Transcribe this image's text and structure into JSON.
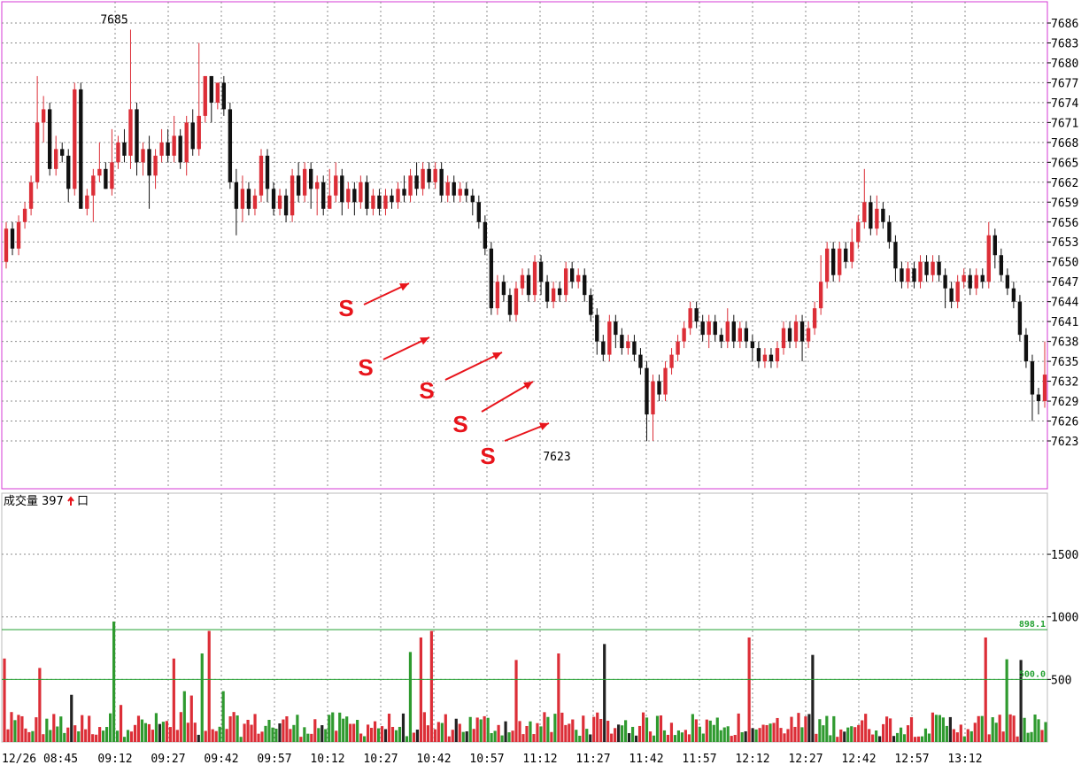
{
  "chart_data": [
    {
      "type": "candlestick",
      "panel": "price",
      "y_ticks": [
        7686,
        7683,
        7680,
        7677,
        7674,
        7671,
        7668,
        7665,
        7662,
        7659,
        7656,
        7653,
        7650,
        7647,
        7644,
        7641,
        7638,
        7635,
        7632,
        7629,
        7626,
        7623
      ],
      "ylim": [
        7620,
        7688
      ],
      "grid": true,
      "annotations": [
        {
          "text": "7685",
          "kind": "high",
          "price": 7685,
          "time": "09:12"
        },
        {
          "text": "7623",
          "kind": "low",
          "price": 7623,
          "time": "11:12"
        }
      ],
      "signals": [
        {
          "text": "S",
          "time": "10:29",
          "price": 7649
        },
        {
          "text": "S",
          "time": "10:35",
          "price": 7641
        },
        {
          "text": "S",
          "time": "10:58",
          "price": 7639
        },
        {
          "text": "S",
          "time": "11:08",
          "price": 7635
        },
        {
          "text": "S",
          "time": "11:11",
          "price": 7629
        }
      ],
      "candles": [
        [
          7650,
          7655,
          7649,
          7656
        ],
        [
          7655,
          7652,
          7651,
          7656
        ],
        [
          7652,
          7656,
          7651,
          7657
        ],
        [
          7656,
          7658,
          7655,
          7659
        ],
        [
          7658,
          7662,
          7657,
          7663
        ],
        [
          7662,
          7671,
          7661,
          7678
        ],
        [
          7671,
          7673,
          7668,
          7675
        ],
        [
          7673,
          7664,
          7663,
          7674
        ],
        [
          7664,
          7667,
          7663,
          7669
        ],
        [
          7667,
          7666,
          7665,
          7668
        ],
        [
          7666,
          7661,
          7659,
          7667
        ],
        [
          7661,
          7676,
          7660,
          7677
        ],
        [
          7676,
          7658,
          7658,
          7677
        ],
        [
          7658,
          7660,
          7657,
          7661
        ],
        [
          7660,
          7663,
          7656,
          7664
        ],
        [
          7663,
          7664,
          7662,
          7668
        ],
        [
          7664,
          7661,
          7661,
          7665
        ],
        [
          7661,
          7665,
          7660,
          7670
        ],
        [
          7665,
          7668,
          7664,
          7669
        ],
        [
          7668,
          7666,
          7665,
          7670
        ],
        [
          7666,
          7673,
          7664,
          7685
        ],
        [
          7673,
          7665,
          7663,
          7674
        ],
        [
          7665,
          7667,
          7663,
          7668
        ],
        [
          7667,
          7663,
          7658,
          7669
        ],
        [
          7663,
          7666,
          7661,
          7667
        ],
        [
          7666,
          7668,
          7665,
          7670
        ],
        [
          7668,
          7666,
          7665,
          7670
        ],
        [
          7666,
          7669,
          7665,
          7672
        ],
        [
          7669,
          7665,
          7664,
          7670
        ],
        [
          7665,
          7671,
          7663,
          7672
        ],
        [
          7671,
          7667,
          7666,
          7673
        ],
        [
          7667,
          7672,
          7666,
          7683
        ],
        [
          7672,
          7678,
          7671,
          7678
        ],
        [
          7678,
          7674,
          7671,
          7678
        ],
        [
          7674,
          7677,
          7673,
          7677
        ],
        [
          7677,
          7673,
          7672,
          7678
        ],
        [
          7673,
          7662,
          7661,
          7674
        ],
        [
          7662,
          7658,
          7654,
          7664
        ],
        [
          7658,
          7661,
          7656,
          7663
        ],
        [
          7661,
          7658,
          7657,
          7662
        ],
        [
          7658,
          7660,
          7657,
          7661
        ],
        [
          7660,
          7666,
          7659,
          7667
        ],
        [
          7666,
          7661,
          7659,
          7667
        ],
        [
          7661,
          7658,
          7657,
          7662
        ],
        [
          7658,
          7660,
          7657,
          7661
        ],
        [
          7660,
          7657,
          7656,
          7661
        ],
        [
          7657,
          7663,
          7656,
          7664
        ],
        [
          7663,
          7660,
          7659,
          7665
        ],
        [
          7660,
          7664,
          7659,
          7665
        ],
        [
          7664,
          7661,
          7658,
          7665
        ],
        [
          7661,
          7662,
          7657,
          7663
        ],
        [
          7662,
          7658,
          7657,
          7663
        ],
        [
          7658,
          7660,
          7658,
          7664
        ],
        [
          7660,
          7663,
          7659,
          7665
        ],
        [
          7663,
          7659,
          7657,
          7664
        ],
        [
          7659,
          7661,
          7658,
          7662
        ],
        [
          7661,
          7659,
          7657,
          7662
        ],
        [
          7659,
          7662,
          7658,
          7663
        ],
        [
          7662,
          7658,
          7657,
          7663
        ],
        [
          7658,
          7660,
          7657,
          7661
        ],
        [
          7660,
          7658,
          7657,
          7661
        ],
        [
          7658,
          7660,
          7657,
          7661
        ],
        [
          7660,
          7659,
          7658,
          7661
        ],
        [
          7659,
          7661,
          7658,
          7662
        ],
        [
          7661,
          7660,
          7659,
          7663
        ],
        [
          7660,
          7663,
          7659,
          7664
        ],
        [
          7663,
          7661,
          7660,
          7665
        ],
        [
          7661,
          7664,
          7660,
          7665
        ],
        [
          7664,
          7662,
          7661,
          7665
        ],
        [
          7662,
          7664,
          7661,
          7665
        ],
        [
          7664,
          7660,
          7659,
          7665
        ],
        [
          7660,
          7662,
          7659,
          7663
        ],
        [
          7662,
          7660,
          7659,
          7663
        ],
        [
          7660,
          7661,
          7659,
          7662
        ],
        [
          7661,
          7660,
          7659,
          7662
        ],
        [
          7660,
          7659,
          7657,
          7661
        ],
        [
          7659,
          7656,
          7655,
          7660
        ],
        [
          7656,
          7652,
          7651,
          7657
        ],
        [
          7652,
          7643,
          7642,
          7653
        ],
        [
          7643,
          7647,
          7642,
          7648
        ],
        [
          7647,
          7645,
          7644,
          7648
        ],
        [
          7645,
          7642,
          7641,
          7646
        ],
        [
          7642,
          7646,
          7641,
          7647
        ],
        [
          7646,
          7648,
          7645,
          7649
        ],
        [
          7648,
          7645,
          7644,
          7649
        ],
        [
          7645,
          7650,
          7644,
          7651
        ],
        [
          7650,
          7647,
          7645,
          7651
        ],
        [
          7647,
          7644,
          7643,
          7648
        ],
        [
          7644,
          7646,
          7643,
          7647
        ],
        [
          7646,
          7645,
          7644,
          7647
        ],
        [
          7645,
          7649,
          7644,
          7650
        ],
        [
          7649,
          7647,
          7646,
          7650
        ],
        [
          7647,
          7648,
          7646,
          7649
        ],
        [
          7648,
          7645,
          7644,
          7649
        ],
        [
          7645,
          7642,
          7641,
          7646
        ],
        [
          7642,
          7638,
          7636,
          7643
        ],
        [
          7638,
          7636,
          7635,
          7639
        ],
        [
          7636,
          7641,
          7635,
          7642
        ],
        [
          7641,
          7639,
          7637,
          7642
        ],
        [
          7639,
          7637,
          7636,
          7640
        ],
        [
          7637,
          7638,
          7636,
          7639
        ],
        [
          7638,
          7636,
          7635,
          7639
        ],
        [
          7636,
          7634,
          7633,
          7637
        ],
        [
          7634,
          7627,
          7623,
          7635
        ],
        [
          7627,
          7632,
          7623,
          7633
        ],
        [
          7632,
          7630,
          7629,
          7633
        ],
        [
          7630,
          7634,
          7629,
          7635
        ],
        [
          7634,
          7636,
          7633,
          7637
        ],
        [
          7636,
          7638,
          7635,
          7639
        ],
        [
          7638,
          7640,
          7637,
          7641
        ],
        [
          7640,
          7643,
          7639,
          7644
        ],
        [
          7643,
          7641,
          7640,
          7644
        ],
        [
          7641,
          7639,
          7638,
          7642
        ],
        [
          7639,
          7641,
          7637,
          7642
        ],
        [
          7641,
          7639,
          7638,
          7642
        ],
        [
          7639,
          7638,
          7637,
          7640
        ],
        [
          7638,
          7641,
          7637,
          7643
        ],
        [
          7641,
          7638,
          7637,
          7642
        ],
        [
          7638,
          7640,
          7637,
          7641
        ],
        [
          7640,
          7638,
          7637,
          7641
        ],
        [
          7638,
          7637,
          7635,
          7639
        ],
        [
          7637,
          7635,
          7634,
          7638
        ],
        [
          7635,
          7636,
          7634,
          7637
        ],
        [
          7636,
          7635,
          7634,
          7637
        ],
        [
          7635,
          7637,
          7634,
          7638
        ],
        [
          7637,
          7640,
          7636,
          7641
        ],
        [
          7640,
          7638,
          7637,
          7641
        ],
        [
          7638,
          7641,
          7637,
          7642
        ],
        [
          7641,
          7638,
          7635,
          7642
        ],
        [
          7638,
          7640,
          7637,
          7641
        ],
        [
          7640,
          7643,
          7639,
          7644
        ],
        [
          7643,
          7647,
          7642,
          7651
        ],
        [
          7647,
          7652,
          7646,
          7653
        ],
        [
          7652,
          7648,
          7647,
          7653
        ],
        [
          7648,
          7652,
          7647,
          7653
        ],
        [
          7652,
          7650,
          7649,
          7653
        ],
        [
          7650,
          7653,
          7649,
          7655
        ],
        [
          7653,
          7656,
          7652,
          7657
        ],
        [
          7656,
          7659,
          7655,
          7664
        ],
        [
          7659,
          7655,
          7654,
          7660
        ],
        [
          7655,
          7658,
          7654,
          7660
        ],
        [
          7658,
          7656,
          7655,
          7659
        ],
        [
          7656,
          7653,
          7652,
          7657
        ],
        [
          7653,
          7649,
          7647,
          7654
        ],
        [
          7649,
          7647,
          7646,
          7650
        ],
        [
          7647,
          7649,
          7646,
          7650
        ],
        [
          7649,
          7647,
          7646,
          7650
        ],
        [
          7647,
          7650,
          7646,
          7651
        ],
        [
          7650,
          7648,
          7647,
          7651
        ],
        [
          7648,
          7650,
          7647,
          7651
        ],
        [
          7650,
          7648,
          7647,
          7651
        ],
        [
          7648,
          7646,
          7643,
          7649
        ],
        [
          7646,
          7644,
          7643,
          7647
        ],
        [
          7644,
          7647,
          7643,
          7648
        ],
        [
          7647,
          7648,
          7646,
          7649
        ],
        [
          7648,
          7646,
          7645,
          7649
        ],
        [
          7646,
          7648,
          7645,
          7649
        ],
        [
          7648,
          7647,
          7646,
          7649
        ],
        [
          7647,
          7654,
          7646,
          7656
        ],
        [
          7654,
          7651,
          7649,
          7655
        ],
        [
          7651,
          7648,
          7647,
          7652
        ],
        [
          7648,
          7646,
          7645,
          7649
        ],
        [
          7646,
          7644,
          7643,
          7647
        ],
        [
          7644,
          7639,
          7638,
          7645
        ],
        [
          7639,
          7635,
          7634,
          7640
        ],
        [
          7635,
          7630,
          7626,
          7636
        ],
        [
          7630,
          7629,
          7627,
          7631
        ],
        [
          7629,
          7633,
          7628,
          7638
        ]
      ]
    },
    {
      "type": "bar",
      "panel": "volume",
      "title": "成交量",
      "value_label": "397",
      "unit": "口",
      "y_ticks": [
        1500,
        1000,
        500
      ],
      "ylim": [
        0,
        1850
      ],
      "ref_lines": [
        {
          "value": 898.1,
          "label": "898.1"
        },
        {
          "value": 500.0,
          "label": "500.0"
        }
      ],
      "x_ticks": [
        "12/26 08:45",
        "09:12",
        "09:27",
        "09:42",
        "09:57",
        "10:12",
        "10:27",
        "10:42",
        "10:57",
        "11:12",
        "11:27",
        "11:42",
        "11:57",
        "12:12",
        "12:27",
        "12:42",
        "12:57",
        "13:12"
      ],
      "colors": {
        "up": "#dc2e37",
        "down": "#2f9a2f",
        "flat": "#222222"
      }
    }
  ],
  "colors": {
    "frame": "#d43ad4",
    "grid": "#8c8c8c",
    "up_candle": "#dc2e37",
    "down_candle": "#111111",
    "ref_line": "#22a030",
    "signal": "#e8141b"
  }
}
